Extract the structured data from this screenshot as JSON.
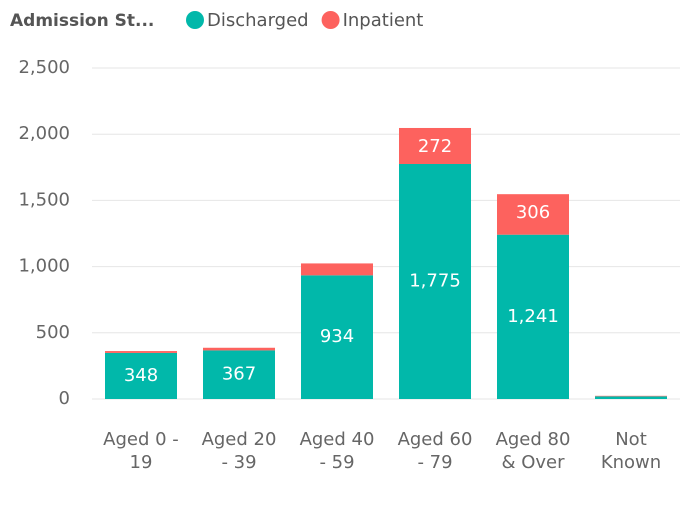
{
  "chart_data": {
    "type": "stacked_bar",
    "legend_title": "Admission St...",
    "categories": [
      "Aged 0 - 19",
      "Aged 20 - 39",
      "Aged 40 - 59",
      "Aged 60 - 79",
      "Aged 80 & Over",
      "Not Known"
    ],
    "series": [
      {
        "name": "Discharged",
        "color": "#01B8AA",
        "values": [
          348,
          367,
          934,
          1775,
          1241,
          20
        ],
        "value_labels": [
          "348",
          "367",
          "934",
          "1,775",
          "1,241",
          null
        ]
      },
      {
        "name": "Inpatient",
        "color": "#FD625E",
        "values": [
          14,
          20,
          90,
          272,
          306,
          4
        ],
        "value_labels": [
          null,
          null,
          null,
          "272",
          "306",
          null
        ]
      }
    ],
    "ylim": [
      0,
      2500
    ],
    "yticks": [
      0,
      500,
      {
        "value": 1000,
        "label": "1,000"
      },
      {
        "value": 1500,
        "label": "1,500"
      },
      {
        "value": 2000,
        "label": "2,000"
      },
      {
        "value": 2500,
        "label": "2,500"
      }
    ],
    "grid": true
  }
}
